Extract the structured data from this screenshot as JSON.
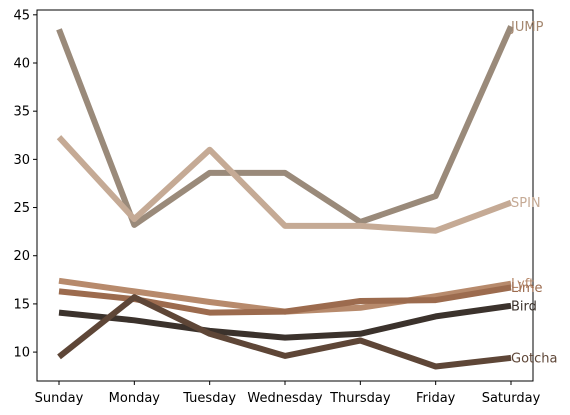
{
  "chart_data": {
    "type": "line",
    "title": "",
    "xlabel": "",
    "ylabel": "",
    "categories": [
      "Sunday",
      "Monday",
      "Tuesday",
      "Wednesday",
      "Thursday",
      "Friday",
      "Saturday"
    ],
    "ylim": [
      7,
      45.5
    ],
    "yticks": [
      10,
      15,
      20,
      25,
      30,
      35,
      40,
      45
    ],
    "grid": false,
    "legend": "none (series labeled at right end of lines)",
    "series": [
      {
        "name": "JUMP",
        "color": "#9a8a7a",
        "label_color": "#a58870",
        "values": [
          43.5,
          23.2,
          28.6,
          28.6,
          23.5,
          26.2,
          43.8
        ]
      },
      {
        "name": "SPIN",
        "color": "#c5aa95",
        "label_color": "#c5aa95",
        "values": [
          32.3,
          23.8,
          31.0,
          23.1,
          23.1,
          22.6,
          25.5
        ]
      },
      {
        "name": "Lyft",
        "color": "#b78a6c",
        "label_color": "#b78a6c",
        "values": [
          17.4,
          16.3,
          15.2,
          14.2,
          14.6,
          15.8,
          17.1
        ]
      },
      {
        "name": "Lime",
        "color": "#9c6b4e",
        "label_color": "#9c6b4e",
        "values": [
          16.3,
          15.5,
          14.1,
          14.2,
          15.3,
          15.4,
          16.7
        ]
      },
      {
        "name": "Bird",
        "color": "#3b322c",
        "label_color": "#3b322c",
        "values": [
          14.1,
          13.3,
          12.2,
          11.5,
          11.9,
          13.7,
          14.8
        ]
      },
      {
        "name": "Gotcha",
        "color": "#5e4637",
        "label_color": "#5e4637",
        "values": [
          9.5,
          15.7,
          11.9,
          9.6,
          11.2,
          8.5,
          9.4
        ]
      }
    ]
  }
}
